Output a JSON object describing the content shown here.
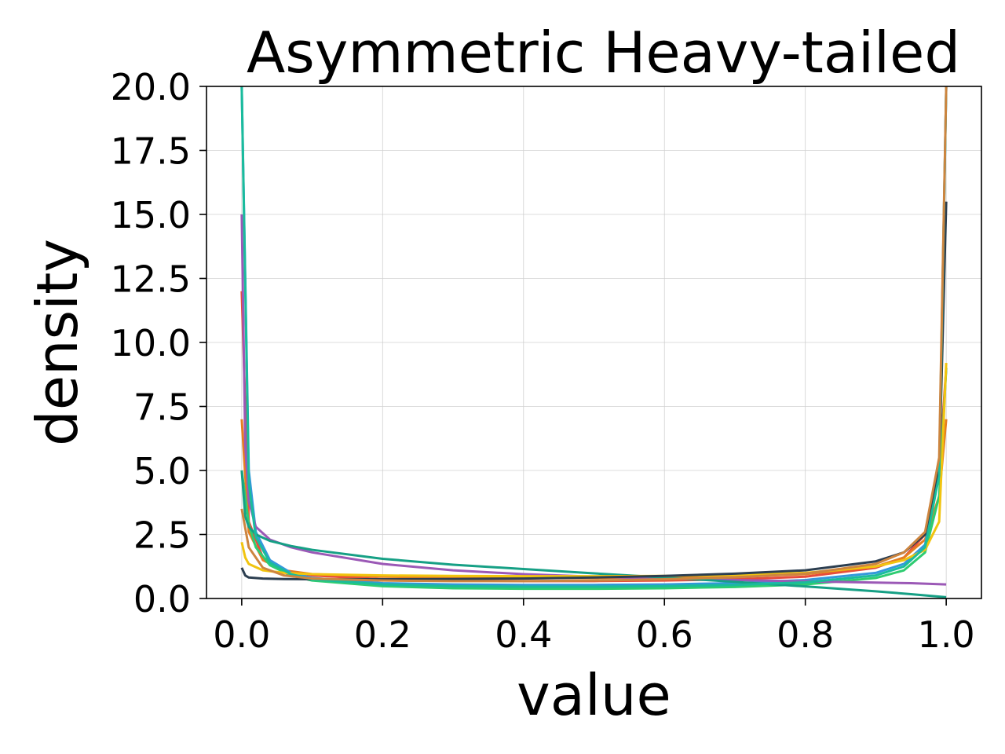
{
  "chart_data": {
    "type": "line",
    "title": "Asymmetric Heavy-tailed",
    "xlabel": "value",
    "ylabel": "density",
    "xlim": [
      -0.05,
      1.05
    ],
    "ylim": [
      0,
      20
    ],
    "xticks": [
      0.0,
      0.2,
      0.4,
      0.6,
      0.8,
      1.0
    ],
    "xtick_labels": [
      "0.0",
      "0.2",
      "0.4",
      "0.6",
      "0.8",
      "1.0"
    ],
    "yticks": [
      0,
      2.5,
      5,
      7.5,
      10,
      12.5,
      15,
      17.5,
      20
    ],
    "ytick_labels": [
      "0.0",
      "2.5",
      "5.0",
      "7.5",
      "10.0",
      "12.5",
      "15.0",
      "17.5",
      "20.0"
    ],
    "grid": true,
    "legend": false,
    "series": [
      {
        "color": "#e74c3c",
        "x": [
          0.0,
          0.01,
          0.03,
          0.06,
          0.1,
          0.2,
          0.3,
          0.4,
          0.5,
          0.6,
          0.7,
          0.8,
          0.9,
          0.94,
          0.97,
          0.99,
          1.0
        ],
        "y": [
          12.0,
          3.0,
          1.6,
          1.1,
          0.9,
          0.75,
          0.7,
          0.68,
          0.68,
          0.7,
          0.75,
          0.85,
          1.2,
          1.6,
          2.5,
          5.0,
          9.0
        ]
      },
      {
        "color": "#e67e22",
        "x": [
          0.0,
          0.01,
          0.03,
          0.06,
          0.1,
          0.2,
          0.3,
          0.4,
          0.5,
          0.6,
          0.7,
          0.8,
          0.9,
          0.94,
          0.97,
          0.99,
          1.0
        ],
        "y": [
          7.0,
          2.6,
          1.5,
          1.1,
          0.95,
          0.85,
          0.82,
          0.8,
          0.8,
          0.82,
          0.86,
          0.95,
          1.25,
          1.6,
          2.3,
          4.0,
          7.0
        ]
      },
      {
        "color": "#3498db",
        "x": [
          0.0,
          0.01,
          0.02,
          0.04,
          0.07,
          0.1,
          0.2,
          0.3,
          0.4,
          0.5,
          0.6,
          0.7,
          0.8,
          0.9,
          0.94,
          0.97,
          0.99,
          1.0
        ],
        "y": [
          20.0,
          5.0,
          2.6,
          1.5,
          1.0,
          0.8,
          0.6,
          0.55,
          0.53,
          0.53,
          0.55,
          0.6,
          0.72,
          1.0,
          1.35,
          2.1,
          5.0,
          20.0
        ]
      },
      {
        "color": "#2ecc71",
        "x": [
          0.0,
          0.01,
          0.02,
          0.04,
          0.07,
          0.1,
          0.2,
          0.3,
          0.4,
          0.5,
          0.6,
          0.7,
          0.8,
          0.9,
          0.94,
          0.97,
          0.99,
          1.0
        ],
        "y": [
          5.0,
          2.9,
          2.0,
          1.3,
          0.9,
          0.7,
          0.48,
          0.4,
          0.38,
          0.38,
          0.4,
          0.45,
          0.55,
          0.8,
          1.1,
          1.8,
          4.0,
          9.0
        ]
      },
      {
        "color": "#9b59b6",
        "x": [
          0.0,
          0.005,
          0.01,
          0.02,
          0.04,
          0.07,
          0.1,
          0.2,
          0.3,
          0.4,
          0.5,
          0.6,
          0.7,
          0.8,
          0.9,
          0.95,
          1.0
        ],
        "y": [
          15.0,
          6.0,
          3.8,
          2.8,
          2.3,
          2.0,
          1.8,
          1.35,
          1.1,
          0.95,
          0.85,
          0.78,
          0.72,
          0.67,
          0.62,
          0.6,
          0.55
        ]
      },
      {
        "color": "#16a085",
        "x": [
          0.0,
          0.005,
          0.01,
          0.02,
          0.04,
          0.07,
          0.1,
          0.2,
          0.3,
          0.4,
          0.5,
          0.6,
          0.7,
          0.8,
          0.9,
          0.95,
          1.0
        ],
        "y": [
          5.0,
          3.2,
          2.8,
          2.5,
          2.25,
          2.05,
          1.9,
          1.55,
          1.32,
          1.15,
          0.98,
          0.82,
          0.65,
          0.47,
          0.28,
          0.17,
          0.05
        ]
      },
      {
        "color": "#f1c40f",
        "x": [
          0.0,
          0.005,
          0.01,
          0.03,
          0.06,
          0.1,
          0.2,
          0.3,
          0.4,
          0.5,
          0.6,
          0.7,
          0.8,
          0.9,
          0.94,
          0.97,
          0.99,
          1.0
        ],
        "y": [
          2.2,
          1.6,
          1.35,
          1.1,
          1.0,
          0.95,
          0.9,
          0.88,
          0.87,
          0.87,
          0.88,
          0.92,
          1.0,
          1.25,
          1.5,
          1.9,
          3.0,
          9.2
        ]
      },
      {
        "color": "#2c3e50",
        "x": [
          0.0,
          0.005,
          0.01,
          0.03,
          0.06,
          0.1,
          0.2,
          0.3,
          0.4,
          0.5,
          0.6,
          0.7,
          0.8,
          0.9,
          0.94,
          0.97,
          0.99,
          1.0
        ],
        "y": [
          1.2,
          0.9,
          0.82,
          0.78,
          0.76,
          0.75,
          0.75,
          0.76,
          0.78,
          0.82,
          0.88,
          0.97,
          1.1,
          1.45,
          1.8,
          2.5,
          5.0,
          15.5
        ]
      },
      {
        "color": "#1abc9c",
        "x": [
          0.0,
          0.01,
          0.02,
          0.04,
          0.07,
          0.1,
          0.2,
          0.3,
          0.4,
          0.5,
          0.6,
          0.7,
          0.8,
          0.9,
          0.94,
          0.97,
          0.99,
          1.0
        ],
        "y": [
          20.0,
          4.5,
          2.4,
          1.4,
          0.95,
          0.75,
          0.55,
          0.48,
          0.46,
          0.46,
          0.48,
          0.53,
          0.63,
          0.9,
          1.25,
          2.0,
          4.8,
          20.0
        ]
      },
      {
        "color": "#cd853f",
        "x": [
          0.0,
          0.01,
          0.03,
          0.06,
          0.1,
          0.2,
          0.3,
          0.4,
          0.5,
          0.6,
          0.7,
          0.8,
          0.9,
          0.94,
          0.97,
          0.99,
          1.0
        ],
        "y": [
          3.5,
          2.0,
          1.2,
          0.9,
          0.78,
          0.7,
          0.68,
          0.68,
          0.7,
          0.75,
          0.83,
          0.97,
          1.35,
          1.8,
          2.6,
          5.5,
          20.0
        ]
      }
    ]
  }
}
